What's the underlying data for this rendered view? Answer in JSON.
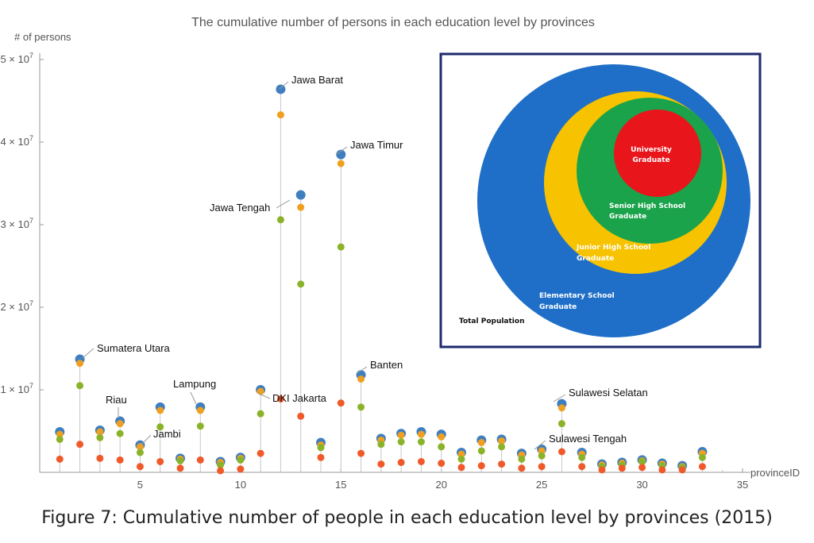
{
  "caption": "Figure 7: Cumulative number of people in each education level by provinces (2015)",
  "chart_data": {
    "type": "scatter",
    "title": "The cumulative number of persons in each education level by provinces",
    "xlabel": "provinceID",
    "ylabel": "# of persons",
    "xlim": [
      0,
      35
    ],
    "ylim": [
      0,
      50000000
    ],
    "x_ticks": [
      5,
      10,
      15,
      20,
      25,
      30,
      35
    ],
    "y_ticks": [
      {
        "value": 10000000,
        "mantissa": "1",
        "exp": "7"
      },
      {
        "value": 20000000,
        "mantissa": "2",
        "exp": "7"
      },
      {
        "value": 30000000,
        "mantissa": "3",
        "exp": "7"
      },
      {
        "value": 40000000,
        "mantissa": "4",
        "exp": "7"
      },
      {
        "value": 50000000,
        "mantissa": "5",
        "exp": "7"
      }
    ],
    "x": [
      1,
      2,
      3,
      4,
      5,
      6,
      7,
      8,
      9,
      10,
      11,
      12,
      13,
      14,
      15,
      16,
      17,
      18,
      19,
      20,
      21,
      22,
      23,
      24,
      25,
      26,
      27,
      28,
      29,
      30,
      31,
      32,
      33
    ],
    "series": [
      {
        "color": "#3f7fbf",
        "values": [
          4900000,
          13700000,
          5100000,
          6200000,
          3300000,
          7900000,
          1700000,
          7900000,
          1300000,
          1800000,
          10000000,
          46400000,
          33600000,
          3600000,
          38500000,
          11800000,
          4100000,
          4700000,
          4900000,
          4600000,
          2400000,
          3900000,
          4000000,
          2300000,
          2800000,
          8300000,
          2400000,
          1000000,
          1200000,
          1500000,
          1100000,
          800000,
          2500000
        ]
      },
      {
        "color": "#f0a020",
        "values": [
          4600000,
          13200000,
          4900000,
          5900000,
          3100000,
          7500000,
          1600000,
          7500000,
          1200000,
          1700000,
          9800000,
          43300000,
          32100000,
          3300000,
          37400000,
          11300000,
          3900000,
          4500000,
          4600000,
          4300000,
          2200000,
          3600000,
          3800000,
          2100000,
          2600000,
          7800000,
          2200000,
          900000,
          1100000,
          1400000,
          1000000,
          700000,
          2300000
        ]
      },
      {
        "color": "#8bb32a",
        "values": [
          4000000,
          10500000,
          4200000,
          4700000,
          2400000,
          5500000,
          1400000,
          5600000,
          900000,
          1500000,
          7100000,
          30600000,
          22800000,
          3000000,
          27300000,
          7900000,
          3400000,
          3700000,
          3700000,
          3100000,
          1600000,
          2600000,
          3100000,
          1600000,
          2000000,
          5900000,
          1800000,
          700000,
          900000,
          1300000,
          800000,
          600000,
          1800000
        ]
      },
      {
        "color": "#f05a2a",
        "values": [
          1600000,
          3400000,
          1700000,
          1500000,
          700000,
          1300000,
          500000,
          1500000,
          200000,
          400000,
          2300000,
          8900000,
          6800000,
          1800000,
          8400000,
          2300000,
          1000000,
          1200000,
          1300000,
          1100000,
          600000,
          800000,
          1000000,
          500000,
          700000,
          2500000,
          700000,
          300000,
          500000,
          600000,
          300000,
          300000,
          700000
        ]
      }
    ],
    "annotations": [
      {
        "text": "Sumatera Utara",
        "x": 2
      },
      {
        "text": "Riau",
        "x": 4
      },
      {
        "text": "Jambi",
        "x": 5
      },
      {
        "text": "Lampung",
        "x": 8
      },
      {
        "text": "DKI Jakarta",
        "x": 11
      },
      {
        "text": "Jawa Barat",
        "x": 12
      },
      {
        "text": "Jawa Tengah",
        "x": 13
      },
      {
        "text": "Jawa Timur",
        "x": 15
      },
      {
        "text": "Banten",
        "x": 16
      },
      {
        "text": "Sulawesi Selatan",
        "x": 26
      },
      {
        "text": "Sulawesi Tengah",
        "x": 25
      }
    ]
  },
  "inset": {
    "total": "Total Population",
    "elementary": [
      "Elementary School",
      "Graduate"
    ],
    "junior": [
      "Junior High School",
      "Graduate"
    ],
    "senior": [
      "Senior High School",
      "Graduate"
    ],
    "university": [
      "University",
      "Graduate"
    ],
    "colors": {
      "elementary": "#1f6fc8",
      "junior": "#f7c200",
      "senior": "#1aa34a",
      "university": "#e8151b",
      "frame": "#1e2a6e"
    }
  }
}
